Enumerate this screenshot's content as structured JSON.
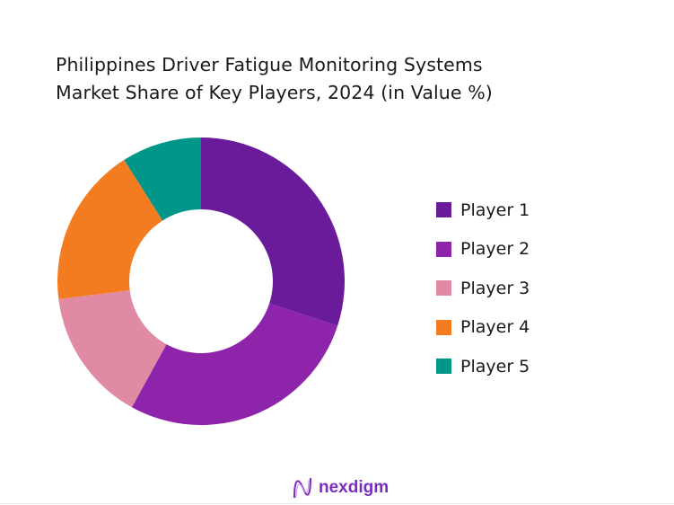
{
  "chart_data": {
    "type": "pie",
    "donut": true,
    "title": "Philippines Driver Fatigue Monitoring Systems Market Share of Key Players, 2024 (in Value %)",
    "title_lines": [
      "Philippines Driver Fatigue Monitoring Systems",
      "Market Share of Key Players, 2024 (in Value %)"
    ],
    "categories": [
      "Player 1",
      "Player 2",
      "Player 3",
      "Player 4",
      "Player 5"
    ],
    "values": [
      30,
      28,
      15,
      18,
      9
    ],
    "colors": [
      "#6a1b9a",
      "#8e24aa",
      "#e08aa3",
      "#f47c20",
      "#009688"
    ],
    "legend_position": "right"
  },
  "brand": {
    "name": "nexdigm",
    "color": "#7b2cbf"
  }
}
